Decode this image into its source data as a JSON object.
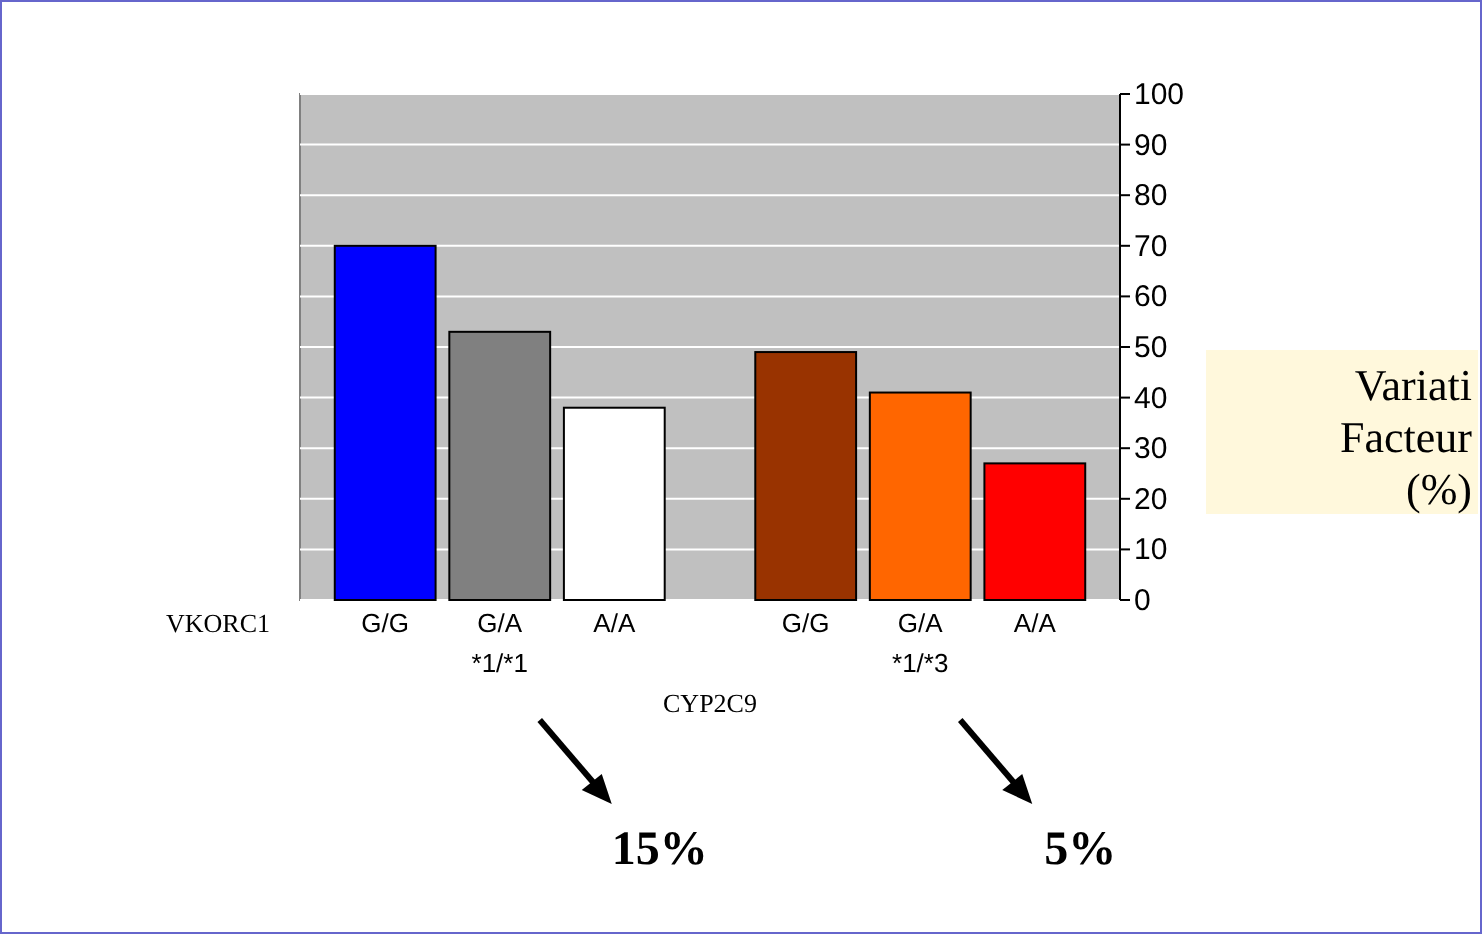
{
  "chart_data": {
    "type": "bar",
    "categories": [
      "*1/*1",
      "*1/*3"
    ],
    "xlabel": "CYP2C9",
    "legend_title": "VKORC1",
    "ylabel": "Variati Facteur (%)",
    "ylim": [
      0,
      100
    ],
    "yticks": [
      0,
      10,
      20,
      30,
      40,
      50,
      60,
      70,
      80,
      90,
      100
    ],
    "grid": "y",
    "series": [
      {
        "name": "G/G",
        "colors": [
          "#0000ff",
          "#993300"
        ],
        "values": [
          70,
          49
        ]
      },
      {
        "name": "G/A",
        "colors": [
          "#808080",
          "#ff6600"
        ],
        "values": [
          53,
          41
        ]
      },
      {
        "name": "A/A",
        "colors": [
          "#ffffff",
          "#ff0000"
        ],
        "values": [
          38,
          27
        ]
      }
    ],
    "annotations": [
      "15%",
      "5%"
    ]
  }
}
